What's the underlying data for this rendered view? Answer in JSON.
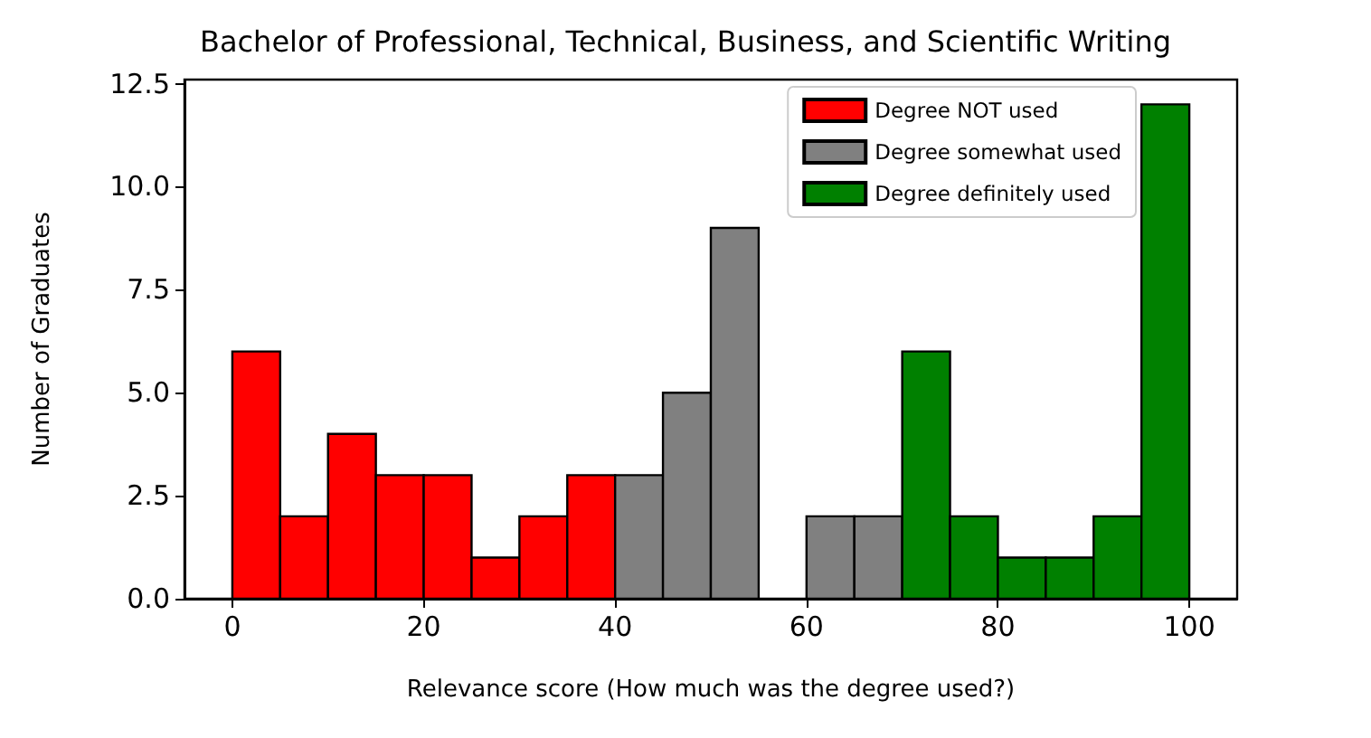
{
  "chart_data": {
    "type": "histogram",
    "title": "Bachelor of Professional, Technical, Business, and Scientific Writing",
    "xlabel": "Relevance score (How much was the degree used?)",
    "ylabel": "Number of Graduates",
    "bins": [
      0,
      5,
      10,
      15,
      20,
      25,
      30,
      35,
      40,
      45,
      50,
      55,
      60,
      65,
      70,
      75,
      80,
      85,
      90,
      95,
      100
    ],
    "series": [
      {
        "name": "Degree NOT used",
        "color": "#ff0000",
        "values": [
          6,
          2,
          4,
          3,
          3,
          1,
          2,
          3,
          null,
          null,
          null,
          null,
          null,
          null,
          null,
          null,
          null,
          null,
          null,
          null
        ]
      },
      {
        "name": "Degree somewhat used",
        "color": "#808080",
        "values": [
          null,
          null,
          null,
          null,
          null,
          null,
          null,
          null,
          3,
          5,
          9,
          0,
          2,
          2,
          null,
          null,
          null,
          null,
          null,
          null
        ]
      },
      {
        "name": "Degree definitely used",
        "color": "#008000",
        "values": [
          null,
          null,
          null,
          null,
          null,
          null,
          null,
          null,
          null,
          null,
          null,
          null,
          null,
          null,
          6,
          2,
          1,
          1,
          2,
          12
        ]
      }
    ],
    "xlim": [
      -5,
      105
    ],
    "xticks": [
      0,
      20,
      40,
      60,
      80,
      100
    ],
    "ylim": [
      0,
      12.6
    ],
    "yticks": [
      {
        "value": 0,
        "label": "0.0"
      },
      {
        "value": 2.5,
        "label": "2.5"
      },
      {
        "value": 5,
        "label": "5.0"
      },
      {
        "value": 7.5,
        "label": "7.5"
      },
      {
        "value": 10,
        "label": "10.0"
      },
      {
        "value": 12.5,
        "label": "12.5"
      }
    ],
    "grid": false,
    "legend": "top right"
  }
}
